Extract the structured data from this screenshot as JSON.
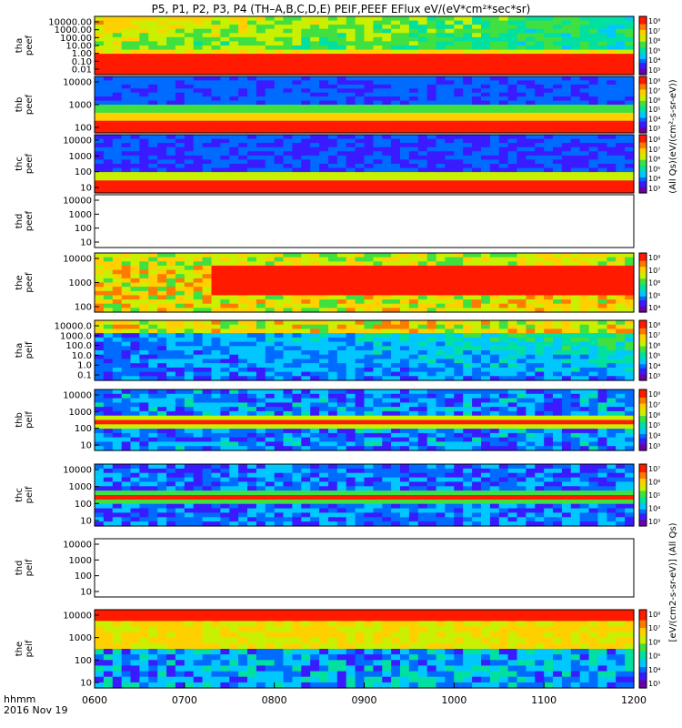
{
  "title": "P5, P1, P2, P3, P4 (TH–A,B,C,D,E) PEIF,PEEF EFlux eV/(eV*cm²*sec*sr)",
  "footer": {
    "time_label": "hhmm",
    "date_label": "2016 Nov 19"
  },
  "colorbar_label_top": "(All Qs)(eV/(cm²-s-sr-eV))",
  "colorbar_label_bottom": "[eV/(cm2-s-sr-eV)] (All Qs)",
  "chart_data": {
    "type": "heatmap",
    "x_tick_labels": [
      "0600",
      "0700",
      "0800",
      "0900",
      "1000",
      "1100",
      "1200"
    ],
    "colorscale": [
      "#6a00a8",
      "#3a1bff",
      "#006bff",
      "#00c8ff",
      "#00e0a0",
      "#40e040",
      "#c8f000",
      "#ffd000",
      "#ff7a00",
      "#ff1a00"
    ],
    "panels": [
      {
        "id": "tha-peef",
        "ylabel": "tha\npeef",
        "yticks": [
          "10000.00",
          "1000.00",
          "100.00",
          "10.00",
          "1.00",
          "0.10",
          "0.01"
        ],
        "cbar_ticks": [
          "10⁸",
          "10⁷",
          "10⁶",
          "10⁵",
          "10⁴",
          "10³"
        ],
        "empty": false
      },
      {
        "id": "thb-peef",
        "ylabel": "thb\npeef",
        "yticks": [
          "10000",
          "1000",
          "100"
        ],
        "cbar_ticks": [
          "10⁸",
          "10⁷",
          "10⁶",
          "10⁵",
          "10⁴",
          "10³"
        ],
        "empty": false
      },
      {
        "id": "thc-peef",
        "ylabel": "thc\npeef",
        "yticks": [
          "10000",
          "1000",
          "100",
          "10"
        ],
        "cbar_ticks": [
          "10⁸",
          "10⁷",
          "10⁶",
          "10⁵",
          "10⁴",
          "10³"
        ],
        "empty": false
      },
      {
        "id": "thd-peef",
        "ylabel": "thd\npeef",
        "yticks": [
          "10000",
          "1000",
          "100",
          "10"
        ],
        "cbar_ticks": [],
        "empty": true
      },
      {
        "id": "the-peef",
        "ylabel": "the\npeef",
        "yticks": [
          "10000",
          "1000",
          "100"
        ],
        "cbar_ticks": [
          "10⁸",
          "10⁷",
          "10⁶",
          "10⁵",
          "10⁴"
        ],
        "empty": false
      },
      {
        "id": "tha-peif",
        "ylabel": "tha\npeif",
        "yticks": [
          "10000.0",
          "1000.0",
          "100.0",
          "10.0",
          "1.0",
          "0.1"
        ],
        "cbar_ticks": [
          "10⁸",
          "10⁷",
          "10⁶",
          "10⁵",
          "10⁴",
          "10³"
        ],
        "empty": false
      },
      {
        "id": "thb-peif",
        "ylabel": "thb\npeif",
        "yticks": [
          "10000",
          "1000",
          "100",
          "10"
        ],
        "cbar_ticks": [
          "10⁸",
          "10⁷",
          "10⁶",
          "10⁵",
          "10⁴",
          "10³"
        ],
        "empty": false
      },
      {
        "id": "thc-peif",
        "ylabel": "thc\npeif",
        "yticks": [
          "10000",
          "1000",
          "100",
          "10"
        ],
        "cbar_ticks": [
          "10⁷",
          "10⁶",
          "10⁵",
          "10⁴",
          "10³"
        ],
        "empty": false
      },
      {
        "id": "thd-peif",
        "ylabel": "thd\npeif",
        "yticks": [
          "10000",
          "1000",
          "100",
          "10"
        ],
        "cbar_ticks": [],
        "empty": true
      },
      {
        "id": "the-peif",
        "ylabel": "the\npeif",
        "yticks": [
          "10000",
          "1000",
          "100",
          "10"
        ],
        "cbar_ticks": [
          "10⁸",
          "10⁷",
          "10⁶",
          "10⁵",
          "10⁴",
          "10³"
        ],
        "empty": false
      }
    ]
  }
}
